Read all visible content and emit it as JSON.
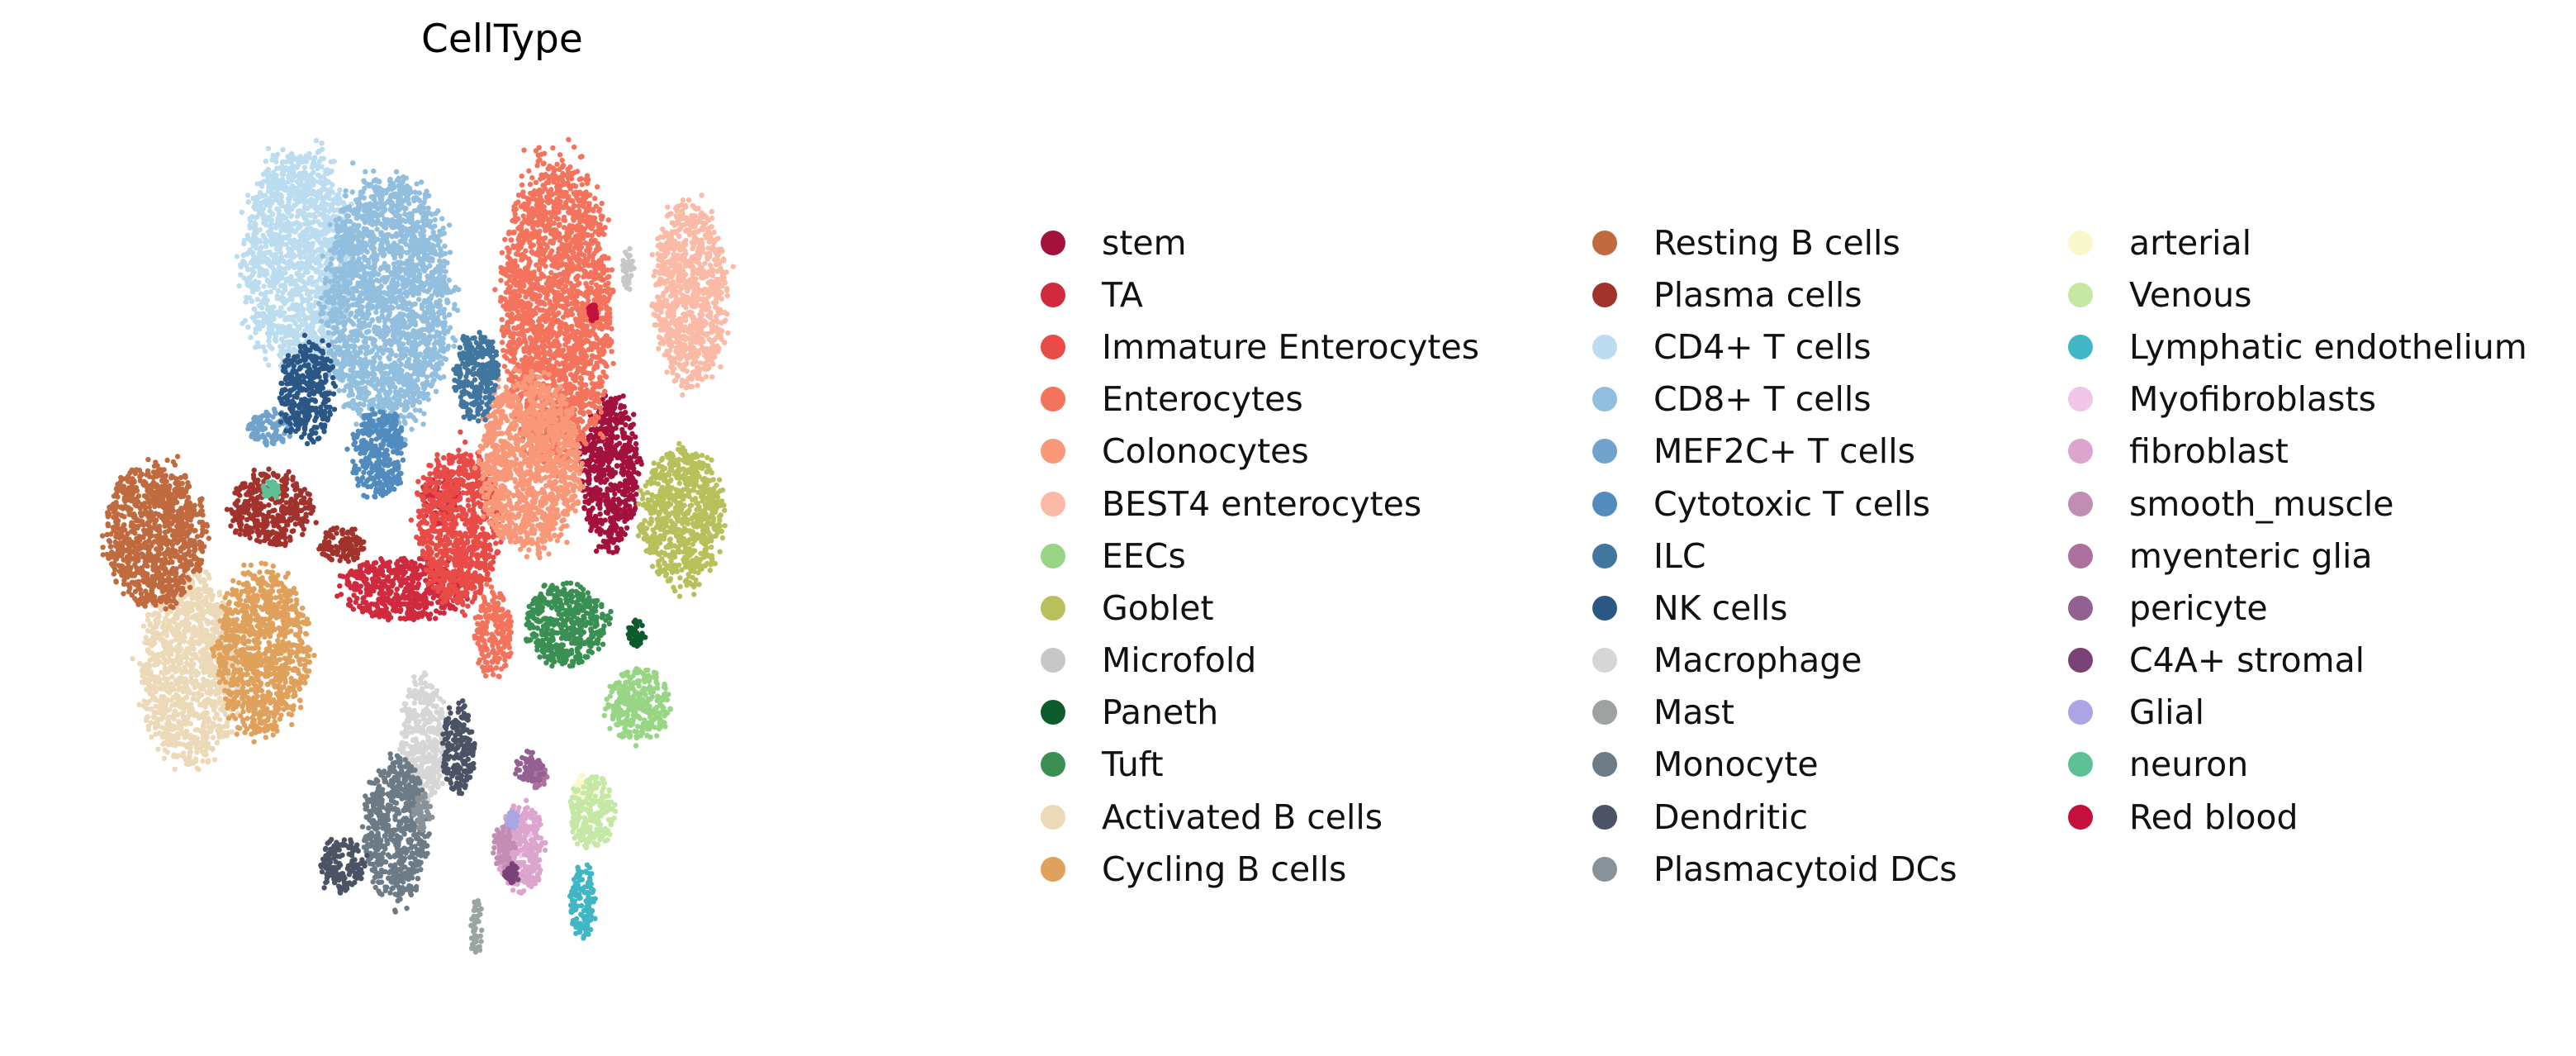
{
  "chart_data": {
    "type": "scatter",
    "title": "CellType",
    "xlabel": "",
    "ylabel": "",
    "grid": false,
    "axes_visible": false,
    "legend_placement": "right",
    "series": [
      {
        "name": "stem",
        "color": "#a3123d",
        "clusters": [
          [
            0.61,
            0.4,
            0.032,
            0.085
          ]
        ]
      },
      {
        "name": "TA",
        "color": "#d02a3f",
        "clusters": [
          [
            0.38,
            0.53,
            0.07,
            0.035
          ],
          [
            0.42,
            0.43,
            0.02,
            0.03
          ]
        ]
      },
      {
        "name": "Immature Enterocytes",
        "color": "#e94b47",
        "clusters": [
          [
            0.44,
            0.46,
            0.045,
            0.085
          ]
        ]
      },
      {
        "name": "Enterocytes",
        "color": "#f3735c",
        "clusters": [
          [
            0.55,
            0.22,
            0.06,
            0.17
          ],
          [
            0.48,
            0.58,
            0.02,
            0.05
          ]
        ]
      },
      {
        "name": "Colonocytes",
        "color": "#f99879",
        "clusters": [
          [
            0.52,
            0.39,
            0.055,
            0.1
          ]
        ]
      },
      {
        "name": "BEST4 enterocytes",
        "color": "#fbbaa6",
        "clusters": [
          [
            0.7,
            0.2,
            0.04,
            0.1
          ]
        ]
      },
      {
        "name": "EECs",
        "color": "#98d585",
        "clusters": [
          [
            0.64,
            0.66,
            0.035,
            0.04
          ]
        ]
      },
      {
        "name": "Goblet",
        "color": "#b8c05b",
        "clusters": [
          [
            0.69,
            0.45,
            0.045,
            0.075
          ]
        ]
      },
      {
        "name": "Microfold",
        "color": "#c7c7c7",
        "clusters": [
          [
            0.63,
            0.17,
            0.006,
            0.025
          ]
        ]
      },
      {
        "name": "Paneth",
        "color": "#0e5b2c",
        "clusters": [
          [
            0.64,
            0.58,
            0.01,
            0.015
          ]
        ]
      },
      {
        "name": "Tuft",
        "color": "#3a8f53",
        "clusters": [
          [
            0.56,
            0.57,
            0.045,
            0.045
          ]
        ]
      },
      {
        "name": "Activated B cells",
        "color": "#ecd9b8",
        "clusters": [
          [
            0.14,
            0.62,
            0.055,
            0.105
          ]
        ]
      },
      {
        "name": "Cycling B cells",
        "color": "#dfa15b",
        "clusters": [
          [
            0.22,
            0.6,
            0.05,
            0.09
          ]
        ]
      },
      {
        "name": "Resting B cells",
        "color": "#c06b3f",
        "clusters": [
          [
            0.1,
            0.47,
            0.055,
            0.08
          ]
        ]
      },
      {
        "name": "Plasma cells",
        "color": "#a2332c",
        "clusters": [
          [
            0.23,
            0.44,
            0.045,
            0.04
          ],
          [
            0.31,
            0.48,
            0.025,
            0.02
          ]
        ]
      },
      {
        "name": "CD4+ T cells",
        "color": "#bcdcef",
        "clusters": [
          [
            0.26,
            0.16,
            0.06,
            0.12
          ]
        ]
      },
      {
        "name": "CD8+ T cells",
        "color": "#93bfdf",
        "clusters": [
          [
            0.36,
            0.21,
            0.07,
            0.14
          ]
        ]
      },
      {
        "name": "MEF2C+ T cells",
        "color": "#71a3cc",
        "clusters": [
          [
            0.23,
            0.35,
            0.025,
            0.02
          ]
        ]
      },
      {
        "name": "Cytotoxic T cells",
        "color": "#528bbe",
        "clusters": [
          [
            0.35,
            0.38,
            0.03,
            0.05
          ]
        ]
      },
      {
        "name": "ILC",
        "color": "#41769f",
        "clusters": [
          [
            0.46,
            0.29,
            0.025,
            0.05
          ]
        ]
      },
      {
        "name": "NK cells",
        "color": "#2b5786",
        "clusters": [
          [
            0.27,
            0.31,
            0.03,
            0.055
          ]
        ]
      },
      {
        "name": "Macrophage",
        "color": "#d6d6d6",
        "clusters": [
          [
            0.4,
            0.7,
            0.025,
            0.07
          ]
        ]
      },
      {
        "name": "Mast",
        "color": "#9ca3a1",
        "clusters": [
          [
            0.46,
            0.91,
            0.007,
            0.03
          ]
        ]
      },
      {
        "name": "Monocyte",
        "color": "#6c7b86",
        "clusters": [
          [
            0.37,
            0.8,
            0.035,
            0.08
          ]
        ]
      },
      {
        "name": "Dendritic",
        "color": "#4b5364",
        "clusters": [
          [
            0.44,
            0.71,
            0.018,
            0.05
          ],
          [
            0.31,
            0.84,
            0.025,
            0.03
          ]
        ]
      },
      {
        "name": "Plasmacytoid DCs",
        "color": "#889298",
        "clusters": [
          [
            0.4,
            0.78,
            0.01,
            0.02
          ]
        ]
      },
      {
        "name": "arterial",
        "color": "#f8f8cc",
        "clusters": [
          [
            0.58,
            0.76,
            0.012,
            0.02
          ]
        ]
      },
      {
        "name": "Venous",
        "color": "#c5e8a5",
        "clusters": [
          [
            0.59,
            0.78,
            0.025,
            0.04
          ]
        ]
      },
      {
        "name": "Lymphatic endothelium",
        "color": "#41b6c4",
        "clusters": [
          [
            0.58,
            0.88,
            0.015,
            0.04
          ]
        ]
      },
      {
        "name": "Myofibroblasts",
        "color": "#f1c6e7",
        "clusters": [
          [
            0.51,
            0.81,
            0.015,
            0.02
          ]
        ]
      },
      {
        "name": "fibroblast",
        "color": "#dca5cd",
        "clusters": [
          [
            0.51,
            0.82,
            0.025,
            0.05
          ]
        ]
      },
      {
        "name": "smooth_muscle",
        "color": "#c28db2",
        "clusters": [
          [
            0.49,
            0.82,
            0.012,
            0.025
          ]
        ]
      },
      {
        "name": "myenteric glia",
        "color": "#ad709f",
        "clusters": [
          [
            0.53,
            0.74,
            0.01,
            0.015
          ]
        ]
      },
      {
        "name": "pericyte",
        "color": "#936091",
        "clusters": [
          [
            0.52,
            0.73,
            0.015,
            0.018
          ]
        ]
      },
      {
        "name": "C4A+ stromal",
        "color": "#7a4378",
        "clusters": [
          [
            0.5,
            0.85,
            0.008,
            0.012
          ]
        ]
      },
      {
        "name": "Glial",
        "color": "#a9a6e3",
        "clusters": [
          [
            0.5,
            0.79,
            0.006,
            0.01
          ]
        ]
      },
      {
        "name": "neuron",
        "color": "#5ec095",
        "clusters": [
          [
            0.23,
            0.42,
            0.01,
            0.01
          ]
        ]
      },
      {
        "name": "Red blood",
        "color": "#c3103c",
        "clusters": [
          [
            0.59,
            0.22,
            0.005,
            0.01
          ]
        ]
      }
    ]
  }
}
